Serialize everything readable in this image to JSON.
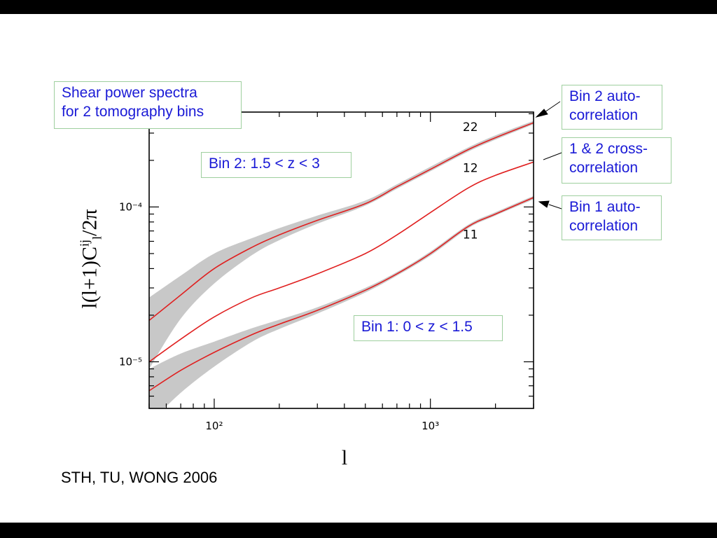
{
  "colors": {
    "curve": "#e02020",
    "band": "#c8c8c8",
    "annotation_text": "#1a1ad6",
    "annotation_border": "#9ecf9e",
    "axis": "#000000"
  },
  "annotations": {
    "title_line1": "Shear power spectra",
    "title_line2": "for 2 tomography bins",
    "bin2_range": "Bin 2: 1.5 < z < 3",
    "bin1_range": "Bin 1: 0 < z < 1.5",
    "bin2_auto_line1": "Bin 2 auto-",
    "bin2_auto_line2": "correlation",
    "cross_line1": "1 & 2 cross-",
    "cross_line2": "correlation",
    "bin1_auto_line1": "Bin 1 auto-",
    "bin1_auto_line2": "correlation"
  },
  "credit": "STH, TU, WONG 2006",
  "chart_data": {
    "type": "line",
    "xlabel": "l",
    "ylabel": {
      "base": "l(l+1)C",
      "sup": "ij",
      "sub": "l",
      "tail": "/2π"
    },
    "x_scale": "log",
    "y_scale": "log",
    "xlim": [
      50,
      3000
    ],
    "ylim": [
      5e-06,
      0.00041
    ],
    "x_ticks": [
      {
        "value": 100,
        "label": "10²"
      },
      {
        "value": 1000,
        "label": "10³"
      }
    ],
    "y_ticks": [
      {
        "value": 1e-05,
        "label": "10⁻⁵"
      },
      {
        "value": 0.0001,
        "label": "10⁻⁴"
      }
    ],
    "series": [
      {
        "name": "22",
        "x": [
          50,
          70,
          100,
          150,
          200,
          300,
          500,
          700,
          1000,
          1500,
          2000,
          3000
        ],
        "y": [
          1.85e-05,
          2.7e-05,
          4e-05,
          5.5e-05,
          6.6e-05,
          8.2e-05,
          0.000105,
          0.000135,
          0.000175,
          0.000235,
          0.00028,
          0.00035
        ],
        "band_lower": [
          9e-06,
          1.9e-05,
          3.2e-05,
          4.9e-05,
          6.1e-05,
          7.8e-05,
          0.000102,
          0.000131,
          0.00017,
          0.000228,
          0.000272,
          0.000342
        ],
        "band_upper": [
          2.6e-05,
          3.6e-05,
          5e-05,
          6.3e-05,
          7.3e-05,
          8.8e-05,
          0.00011,
          0.00014,
          0.000182,
          0.000243,
          0.00029,
          0.00036
        ]
      },
      {
        "name": "12",
        "x": [
          50,
          70,
          100,
          150,
          200,
          300,
          500,
          700,
          1000,
          1500,
          2000,
          3000
        ],
        "y": [
          1e-05,
          1.4e-05,
          1.95e-05,
          2.6e-05,
          3e-05,
          3.7e-05,
          5e-05,
          6.6e-05,
          9.2e-05,
          0.000133,
          0.00016,
          0.000195
        ]
      },
      {
        "name": "11",
        "x": [
          50,
          70,
          100,
          150,
          200,
          300,
          500,
          700,
          1000,
          1500,
          2000,
          3000
        ],
        "y": [
          6.5e-06,
          8.8e-06,
          1.15e-05,
          1.5e-05,
          1.75e-05,
          2.15e-05,
          2.9e-05,
          3.7e-05,
          5e-05,
          7.5e-05,
          9e-05,
          0.000115
        ],
        "band_lower": [
          4e-06,
          6.3e-06,
          9.3e-06,
          1.35e-05,
          1.63e-05,
          2.05e-05,
          2.8e-05,
          3.6e-05,
          4.85e-05,
          7.3e-05,
          8.8e-05,
          0.000112
        ],
        "band_upper": [
          9e-06,
          1.13e-05,
          1.35e-05,
          1.65e-05,
          1.87e-05,
          2.25e-05,
          3e-05,
          3.8e-05,
          5.15e-05,
          7.7e-05,
          9.25e-05,
          0.000118
        ]
      }
    ]
  }
}
